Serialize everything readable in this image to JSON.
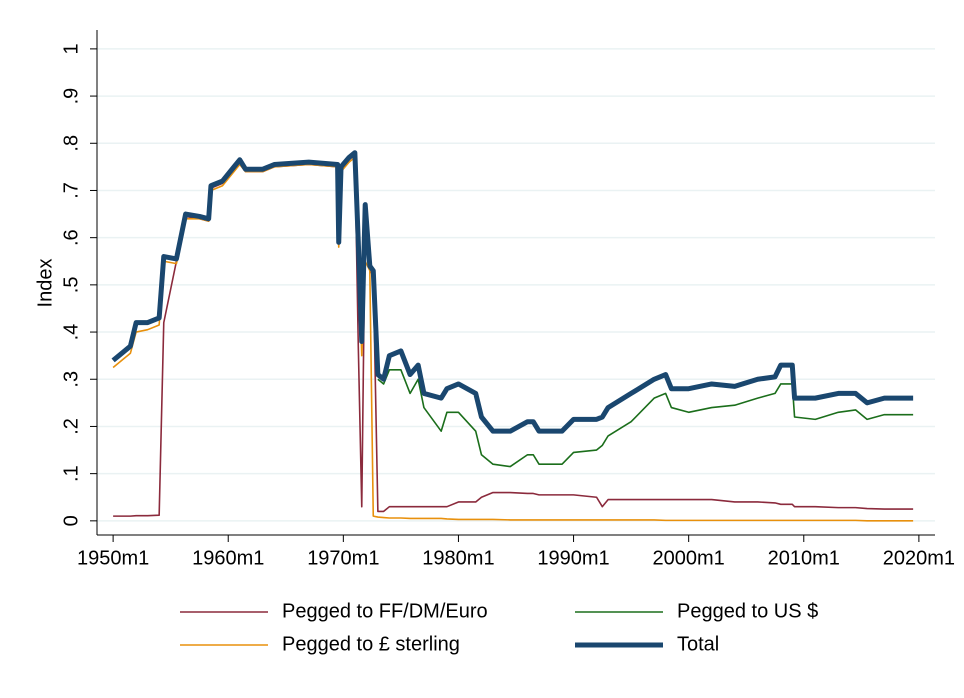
{
  "chart_data": {
    "type": "line",
    "ylabel": "Index",
    "xlim": [
      1948.6,
      2021.4
    ],
    "ylim": [
      -0.03,
      1.04
    ],
    "xticks": [
      {
        "value": 1950,
        "label": "1950m1"
      },
      {
        "value": 1960,
        "label": "1960m1"
      },
      {
        "value": 1970,
        "label": "1970m1"
      },
      {
        "value": 1980,
        "label": "1980m1"
      },
      {
        "value": 1990,
        "label": "1990m1"
      },
      {
        "value": 2000,
        "label": "2000m1"
      },
      {
        "value": 2010,
        "label": "2010m1"
      },
      {
        "value": 2020,
        "label": "2020m1"
      }
    ],
    "yticks": [
      0,
      {
        "value": 0.1,
        "label": ".1"
      },
      {
        "value": 0.2,
        "label": ".2"
      },
      {
        "value": 0.3,
        "label": ".3"
      },
      {
        "value": 0.4,
        "label": ".4"
      },
      {
        "value": 0.5,
        "label": ".5"
      },
      {
        "value": 0.6,
        "label": ".6"
      },
      {
        "value": 0.7,
        "label": ".7"
      },
      {
        "value": 0.8,
        "label": ".8"
      },
      {
        "value": 0.9,
        "label": ".9"
      },
      1
    ],
    "grid": true,
    "legend": "bottom",
    "x": [
      1950.0,
      1950.5,
      1951.0,
      1951.5,
      1952.0,
      1953.0,
      1954.0,
      1954.4,
      1955.5,
      1956.3,
      1957.5,
      1958.3,
      1958.5,
      1959.5,
      1960.5,
      1961.0,
      1961.5,
      1963.0,
      1964.0,
      1967.0,
      1969.5,
      1969.6,
      1969.8,
      1970.5,
      1971.0,
      1971.3,
      1971.6,
      1971.9,
      1972.3,
      1972.6,
      1973.0,
      1973.5,
      1974.0,
      1975.0,
      1975.8,
      1976.5,
      1977.0,
      1978.5,
      1979.0,
      1980.0,
      1981.5,
      1982.0,
      1983.0,
      1984.5,
      1986.0,
      1986.5,
      1987.0,
      1989.0,
      1990.0,
      1992.0,
      1992.5,
      1993.0,
      1995.0,
      1997.0,
      1998.0,
      1998.5,
      2000.0,
      2002.0,
      2004.0,
      2006.0,
      2007.5,
      2008.0,
      2009.0,
      2009.2,
      2011.0,
      2013.0,
      2014.5,
      2015.5,
      2017.0,
      2019.5
    ],
    "series": [
      {
        "name": "Pegged to FF/DM/Euro",
        "color": "#8b2a3c",
        "width": 1.6,
        "values": [
          0.01,
          0.01,
          0.01,
          0.01,
          0.011,
          0.011,
          0.012,
          0.42,
          0.55,
          0.645,
          0.64,
          0.635,
          0.705,
          0.715,
          0.745,
          0.76,
          0.74,
          0.74,
          0.75,
          0.755,
          0.75,
          0.585,
          0.745,
          0.765,
          0.775,
          0.37,
          0.03,
          0.65,
          0.53,
          0.52,
          0.02,
          0.02,
          0.03,
          0.03,
          0.03,
          0.03,
          0.03,
          0.03,
          0.03,
          0.04,
          0.04,
          0.05,
          0.06,
          0.06,
          0.058,
          0.058,
          0.055,
          0.055,
          0.055,
          0.05,
          0.03,
          0.045,
          0.045,
          0.045,
          0.045,
          0.045,
          0.045,
          0.045,
          0.04,
          0.04,
          0.038,
          0.035,
          0.035,
          0.03,
          0.03,
          0.028,
          0.028,
          0.026,
          0.025,
          0.025
        ]
      },
      {
        "name": "Pegged to US $",
        "color": "#1b6e1b",
        "width": 1.6,
        "values": [
          null,
          null,
          null,
          null,
          null,
          null,
          null,
          null,
          null,
          null,
          null,
          null,
          null,
          null,
          null,
          null,
          null,
          null,
          null,
          null,
          null,
          null,
          null,
          null,
          null,
          null,
          null,
          null,
          null,
          null,
          0.3,
          0.29,
          0.32,
          0.32,
          0.27,
          0.3,
          0.24,
          0.19,
          0.23,
          0.23,
          0.19,
          0.14,
          0.12,
          0.115,
          0.14,
          0.14,
          0.12,
          0.12,
          0.145,
          0.15,
          0.16,
          0.18,
          0.21,
          0.26,
          0.27,
          0.24,
          0.23,
          0.24,
          0.245,
          0.26,
          0.27,
          0.29,
          0.29,
          0.22,
          0.215,
          0.23,
          0.235,
          0.215,
          0.225,
          0.225
        ]
      },
      {
        "name": "Pegged to £ sterling",
        "color": "#e8900c",
        "width": 1.6,
        "values": [
          0.325,
          0.335,
          0.345,
          0.355,
          0.4,
          0.405,
          0.415,
          0.55,
          0.545,
          0.64,
          0.64,
          0.635,
          0.7,
          0.71,
          0.74,
          0.755,
          0.74,
          0.74,
          0.75,
          0.755,
          0.75,
          0.58,
          0.74,
          0.76,
          0.77,
          0.58,
          0.35,
          0.55,
          0.53,
          0.01,
          0.008,
          0.007,
          0.006,
          0.006,
          0.005,
          0.005,
          0.005,
          0.005,
          0.004,
          0.003,
          0.003,
          0.003,
          0.003,
          0.002,
          0.002,
          0.002,
          0.002,
          0.002,
          0.002,
          0.002,
          0.002,
          0.002,
          0.002,
          0.002,
          0.001,
          0.001,
          0.001,
          0.001,
          0.001,
          0.001,
          0.001,
          0.001,
          0.001,
          0.001,
          0.001,
          0.001,
          0.001,
          0.0,
          0.0,
          0.0
        ]
      },
      {
        "name": "Total",
        "color": "#1a476f",
        "width": 5,
        "values": [
          0.34,
          0.35,
          0.36,
          0.37,
          0.42,
          0.42,
          0.43,
          0.56,
          0.555,
          0.65,
          0.645,
          0.64,
          0.71,
          0.72,
          0.75,
          0.765,
          0.745,
          0.745,
          0.755,
          0.76,
          0.755,
          0.59,
          0.75,
          0.77,
          0.78,
          0.59,
          0.38,
          0.67,
          0.54,
          0.53,
          0.31,
          0.3,
          0.35,
          0.36,
          0.31,
          0.33,
          0.27,
          0.26,
          0.28,
          0.29,
          0.27,
          0.22,
          0.19,
          0.19,
          0.21,
          0.21,
          0.19,
          0.19,
          0.215,
          0.215,
          0.22,
          0.24,
          0.27,
          0.3,
          0.31,
          0.28,
          0.28,
          0.29,
          0.285,
          0.3,
          0.305,
          0.33,
          0.33,
          0.26,
          0.26,
          0.27,
          0.27,
          0.25,
          0.26,
          0.26
        ]
      }
    ]
  }
}
